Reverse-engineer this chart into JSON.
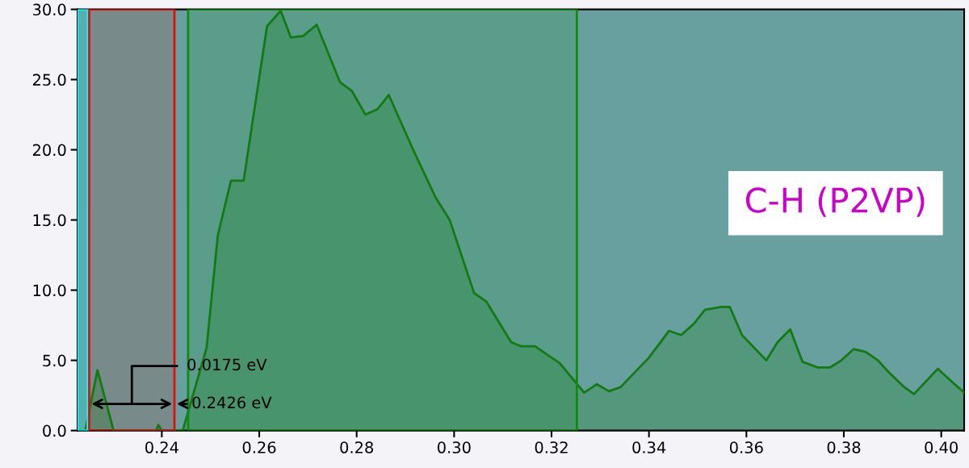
{
  "chart_data": {
    "type": "area",
    "x": [
      0.2243,
      0.2268,
      0.2301,
      0.2388,
      0.2393,
      0.24,
      0.2443,
      0.2492,
      0.2515,
      0.2542,
      0.2568,
      0.2616,
      0.2644,
      0.2665,
      0.269,
      0.2718,
      0.2766,
      0.279,
      0.2818,
      0.2843,
      0.2866,
      0.2916,
      0.2962,
      0.2991,
      0.3041,
      0.3066,
      0.3117,
      0.3138,
      0.3166,
      0.3217,
      0.3267,
      0.3293,
      0.3318,
      0.3342,
      0.34,
      0.3441,
      0.3466,
      0.3492,
      0.3515,
      0.3548,
      0.3566,
      0.3591,
      0.3641,
      0.3664,
      0.369,
      0.3715,
      0.3746,
      0.3772,
      0.3795,
      0.382,
      0.3845,
      0.387,
      0.3891,
      0.3924,
      0.3944,
      0.3993,
      0.4018,
      0.4047
    ],
    "series": [
      {
        "color": "#137a13",
        "values": [
          0,
          4.3,
          0,
          0,
          0.4,
          0,
          0,
          5.9,
          13.9,
          17.8,
          17.8,
          28.8,
          29.9,
          28.0,
          28.1,
          28.9,
          24.8,
          24.2,
          22.5,
          22.9,
          23.9,
          20.0,
          16.6,
          15.0,
          9.8,
          9.2,
          6.3,
          6.0,
          6.0,
          4.8,
          2.7,
          3.3,
          2.8,
          3.1,
          5.2,
          7.1,
          6.8,
          7.6,
          8.6,
          8.8,
          8.8,
          6.8,
          5.0,
          6.3,
          7.2,
          4.9,
          4.5,
          4.5,
          5.0,
          5.8,
          5.6,
          5.0,
          4.2,
          3.1,
          2.6,
          4.4,
          3.6,
          2.7
        ]
      }
    ],
    "xlim": [
      0.2227,
      0.4047
    ],
    "xticks": [
      0.24,
      0.26,
      0.28,
      {
        "value": 0.3,
        "label": "0.30"
      },
      0.32,
      0.34,
      0.36,
      0.38,
      {
        "value": 0.4,
        "label": "0.40"
      }
    ],
    "ylim": [
      0,
      30
    ],
    "yticks": [
      {
        "value": 0,
        "label": "0.0"
      },
      {
        "value": 5,
        "label": "5.0"
      },
      {
        "value": 10,
        "label": "10.0"
      },
      {
        "value": 15,
        "label": "15.0"
      },
      {
        "value": 20,
        "label": "20.0"
      },
      {
        "value": 25,
        "label": "25.0"
      },
      {
        "value": 30,
        "label": "30.0"
      }
    ],
    "bands": [
      {
        "axis": "x",
        "from": 0.2227,
        "to": 0.2248,
        "color": "#00ffff"
      },
      {
        "axis": "x",
        "from": 0.2251,
        "to": 0.2426,
        "color": "#e01010"
      },
      {
        "axis": "x",
        "from": 0.2454,
        "to": 0.3252,
        "color": "#108a10"
      }
    ],
    "annotations": [
      "0.0175 eV",
      {
        "text": "0.2426 eV",
        "x": 0.2426,
        "y": 1.9
      },
      "C-H (P2VP)"
    ]
  }
}
